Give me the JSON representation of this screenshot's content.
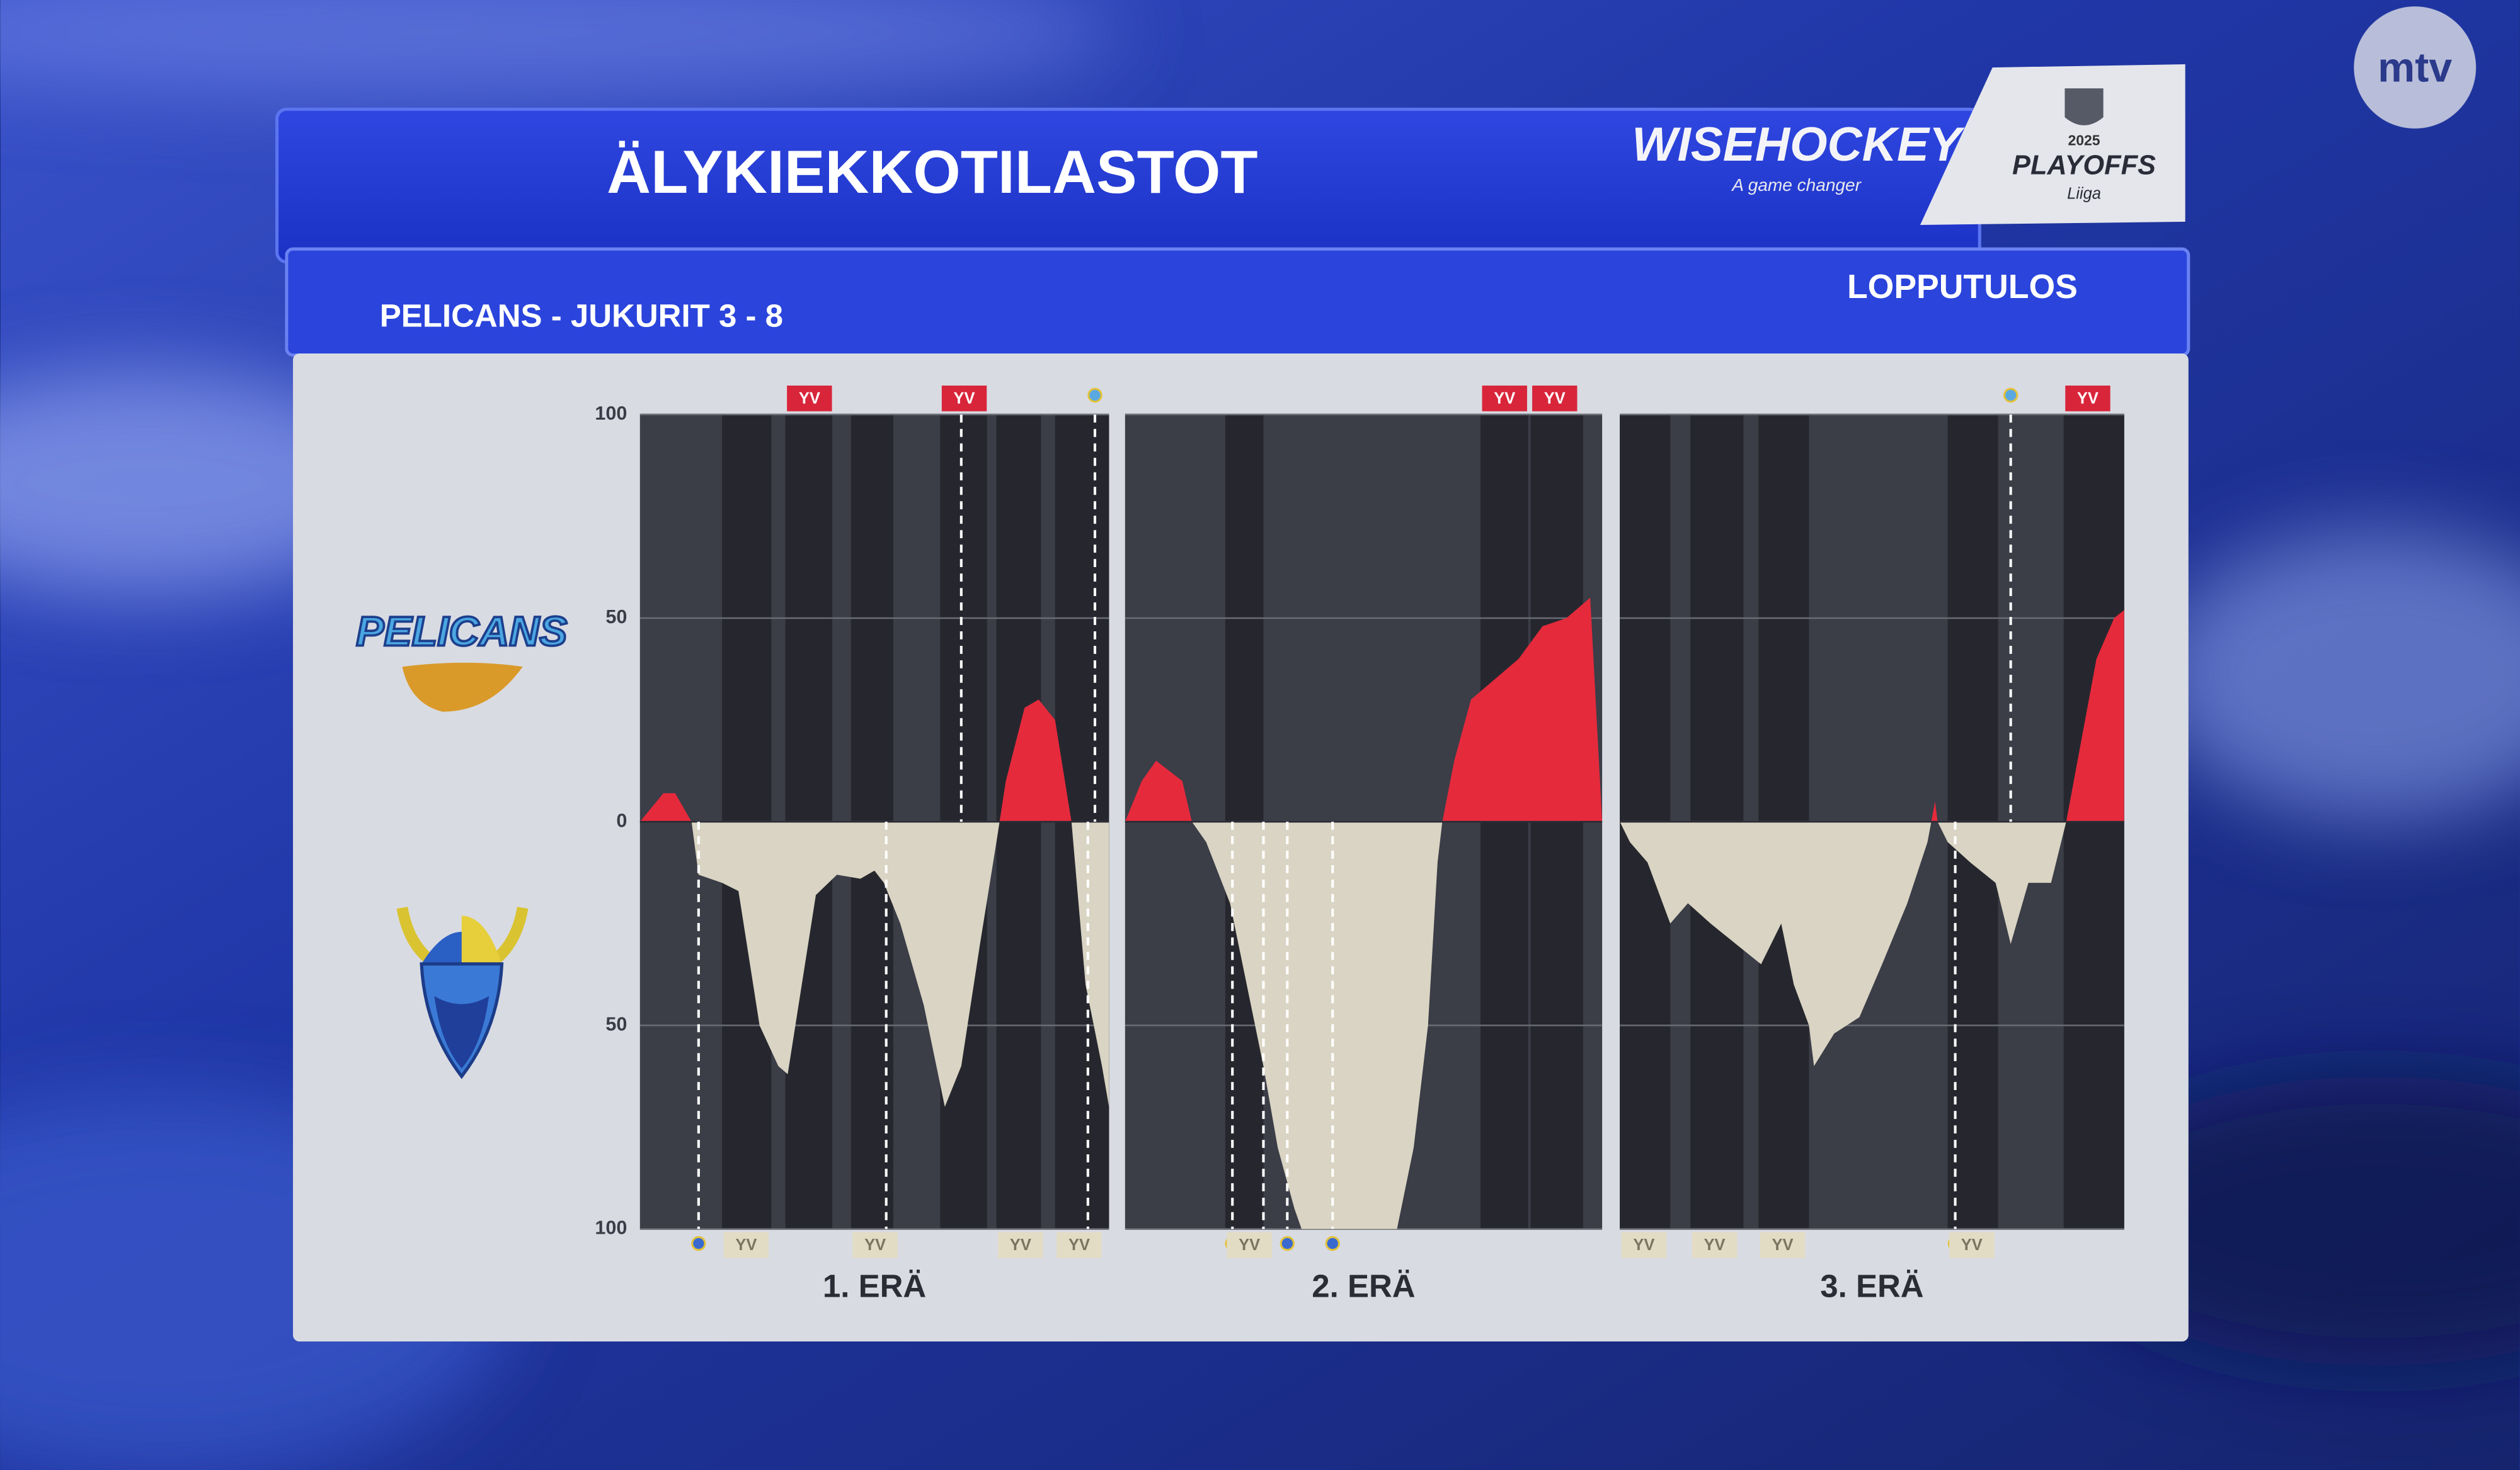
{
  "chart_data": {
    "type": "area",
    "title": "ÄLYKIEKKOTILASTOT",
    "sponsor": "WISEHOCKEY",
    "sponsor_tagline": "A game changer",
    "badge_year": "2025",
    "badge_text": "PLAYOFFS",
    "badge_league": "Liiga",
    "channel": "mtv",
    "subtitle": "PELICANS - JUKURIT  3 - 8",
    "status": "LOPPUTULOS",
    "home_logo_text": "PELICANS",
    "xlim": [
      0,
      20
    ],
    "ylim": [
      -100,
      100
    ],
    "yticks": [
      100,
      50,
      0,
      {
        "value": -50,
        "label": "50"
      },
      {
        "value": -100,
        "label": "100"
      }
    ],
    "grid": true,
    "colors": {
      "home": "#e52a3c",
      "away": "#d9d4c3",
      "home_tag": "#d8253a",
      "away_tag": "#e3dcc4"
    },
    "periods": [
      {
        "label": "1. ERÄ",
        "x": [
          0,
          1,
          1.5,
          2,
          2.2,
          2.5,
          3.5,
          4.2,
          5.1,
          5.9,
          6.3,
          6.9,
          7.5,
          8.4,
          9.4,
          10,
          10.4,
          11.1,
          12.1,
          13,
          13.7,
          14.5,
          15.2,
          15.6,
          16.4,
          17,
          17.7,
          18.4,
          19,
          19.7,
          20
        ],
        "values": [
          0,
          7,
          7,
          2,
          0,
          -13,
          -15,
          -17,
          -50,
          -60,
          -62,
          -40,
          -18,
          -13,
          -14,
          -12,
          -15,
          -25,
          -45,
          -70,
          -60,
          -30,
          -5,
          10,
          28,
          30,
          25,
          0,
          -40,
          -60,
          -70
        ],
        "goals": [
          {
            "team": "away",
            "time": 2.5
          },
          {
            "team": "away",
            "time": 10.5
          },
          {
            "team": "home",
            "time": 13.7
          },
          {
            "team": "away",
            "time": 19.1
          },
          {
            "team": "home",
            "time": 19.4
          }
        ],
        "powerplays": [
          {
            "team": "home",
            "start": 6.2,
            "end": 8.2,
            "label": "YV"
          },
          {
            "team": "home",
            "start": 12.8,
            "end": 14.8,
            "label": "YV"
          },
          {
            "team": "away",
            "start": 3.5,
            "end": 5.6,
            "label": "YV"
          },
          {
            "team": "away",
            "start": 9,
            "end": 10.8,
            "label": "YV"
          },
          {
            "team": "away",
            "start": 15.2,
            "end": 17.1,
            "label": "YV"
          },
          {
            "team": "away",
            "start": 17.7,
            "end": 20,
            "label": "YV"
          }
        ]
      },
      {
        "label": "2. ERÄ",
        "x": [
          0,
          0.7,
          1.3,
          2.4,
          2.8,
          3.4,
          4.4,
          5.1,
          5.8,
          6.4,
          7.1,
          7.4,
          11.4,
          12.1,
          12.7,
          13.1,
          13.3,
          13.8,
          14.5,
          15.5,
          16.5,
          17.5,
          18.5,
          19.5,
          20
        ],
        "values": [
          0,
          10,
          15,
          10,
          0,
          -5,
          -20,
          -40,
          -60,
          -80,
          -95,
          -100,
          -100,
          -80,
          -50,
          -10,
          0,
          15,
          30,
          35,
          40,
          48,
          50,
          55,
          0
        ],
        "goals": [
          {
            "team": "away",
            "time": 4.5
          },
          {
            "team": "away",
            "time": 5.8
          },
          {
            "team": "away",
            "time": 6.8
          },
          {
            "team": "away",
            "time": 8.7
          }
        ],
        "powerplays": [
          {
            "team": "home",
            "start": 14.9,
            "end": 16.9,
            "label": "YV"
          },
          {
            "team": "home",
            "start": 17,
            "end": 19.2,
            "label": "YV"
          },
          {
            "team": "away",
            "start": 4.2,
            "end": 5.8,
            "label": "YV"
          }
        ]
      },
      {
        "label": "3. ERÄ",
        "x": [
          0,
          0.4,
          1.1,
          1.7,
          2,
          2.7,
          3.6,
          4.6,
          5.6,
          6.4,
          6.9,
          7.5,
          7.7,
          8.5,
          9.5,
          10.4,
          11.4,
          12.2,
          12.5,
          12.6,
          13,
          13.9,
          14.9,
          15.5,
          16.2,
          17.1,
          17.7,
          18.3,
          18.9,
          19.6,
          20
        ],
        "values": [
          0,
          -5,
          -10,
          -20,
          -25,
          -20,
          -25,
          -30,
          -35,
          -25,
          -40,
          -50,
          -60,
          -52,
          -48,
          -35,
          -20,
          -5,
          5,
          0,
          -5,
          -10,
          -15,
          -30,
          -15,
          -15,
          0,
          20,
          40,
          50,
          52
        ],
        "goals": [
          {
            "team": "away",
            "time": 13.3
          },
          {
            "team": "home",
            "time": 15.5
          }
        ],
        "powerplays": [
          {
            "team": "home",
            "start": 17.6,
            "end": 20,
            "label": "YV"
          },
          {
            "team": "away",
            "start": 0,
            "end": 2,
            "label": "YV"
          },
          {
            "team": "away",
            "start": 2.8,
            "end": 4.9,
            "label": "YV"
          },
          {
            "team": "away",
            "start": 5.5,
            "end": 7.5,
            "label": "YV"
          },
          {
            "team": "away",
            "start": 13,
            "end": 15,
            "label": "YV"
          }
        ]
      }
    ]
  }
}
